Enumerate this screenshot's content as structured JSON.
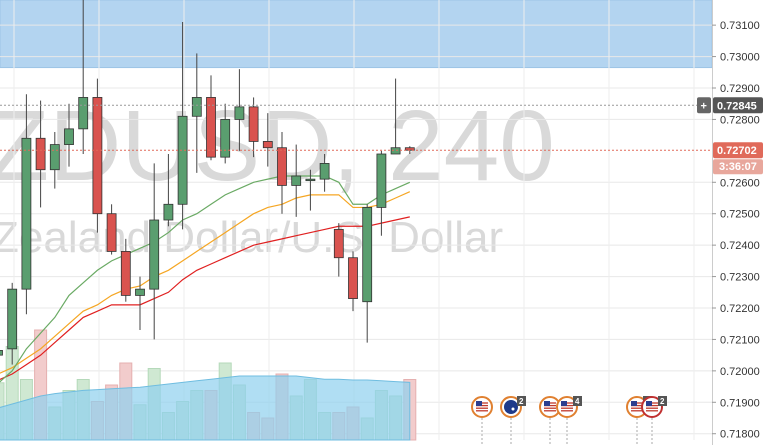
{
  "watermark": {
    "symbol": "ZDUSD, 240",
    "description": "Zealand Dollar/U.S. Dollar"
  },
  "price_tags": {
    "marked_price": "0.72845",
    "current_price": "0.72702",
    "countdown": "3:36:07",
    "plus_symbol": "+"
  },
  "colors": {
    "bull": "#5a9e6f",
    "bear": "#d9534f",
    "zone": "#b3d4f0",
    "ma_fast": "#6aaa64",
    "ma_mid": "#f5a623",
    "ma_slow": "#e02020",
    "volume_green": "#cfe8d2",
    "volume_red": "#f2cccc",
    "volume_area": "#8fd0ee",
    "current_price_line": "#e06a5a",
    "marked_price_line": "#999999"
  },
  "events": [
    {
      "flag": "us-flag-icon",
      "count": ""
    },
    {
      "flag": "au-flag-icon",
      "count": "2"
    },
    {
      "flag": "us-flag-icon",
      "count": ""
    },
    {
      "flag": "us-flag-icon",
      "count": "4"
    },
    {
      "flag": "us-flag-icon",
      "count": "4"
    },
    {
      "flag": "us-flag-icon",
      "count": "2"
    }
  ],
  "chart_data": {
    "type": "candlestick",
    "y_axis": {
      "ticks": [
        "0.73100",
        "0.73000",
        "0.72900",
        "0.72800",
        "0.72600",
        "0.72500",
        "0.72400",
        "0.72300",
        "0.72200",
        "0.72100",
        "0.72000",
        "0.71900",
        "0.71800"
      ],
      "ylim": [
        0.7178,
        0.7318
      ]
    },
    "shaded_zone": [
      0.72965,
      0.7318
    ],
    "candles": [
      {
        "o": 0.7205,
        "h": 0.7212,
        "l": 0.7202,
        "c": 0.72065
      },
      {
        "o": 0.7207,
        "h": 0.7228,
        "l": 0.7202,
        "c": 0.7226
      },
      {
        "o": 0.7226,
        "h": 0.7288,
        "l": 0.7218,
        "c": 0.7274
      },
      {
        "o": 0.7274,
        "h": 0.7286,
        "l": 0.7252,
        "c": 0.7264
      },
      {
        "o": 0.7264,
        "h": 0.7276,
        "l": 0.7258,
        "c": 0.7272
      },
      {
        "o": 0.7272,
        "h": 0.7285,
        "l": 0.7265,
        "c": 0.7277
      },
      {
        "o": 0.7277,
        "h": 0.7319,
        "l": 0.7269,
        "c": 0.7287
      },
      {
        "o": 0.7287,
        "h": 0.7293,
        "l": 0.7244,
        "c": 0.725
      },
      {
        "o": 0.725,
        "h": 0.7253,
        "l": 0.7237,
        "c": 0.7238
      },
      {
        "o": 0.7238,
        "h": 0.7242,
        "l": 0.7222,
        "c": 0.7224
      },
      {
        "o": 0.7224,
        "h": 0.723,
        "l": 0.7213,
        "c": 0.7226
      },
      {
        "o": 0.7226,
        "h": 0.7266,
        "l": 0.721,
        "c": 0.7248
      },
      {
        "o": 0.7248,
        "h": 0.7269,
        "l": 0.7246,
        "c": 0.7253
      },
      {
        "o": 0.7253,
        "h": 0.7311,
        "l": 0.7245,
        "c": 0.7281
      },
      {
        "o": 0.7281,
        "h": 0.7301,
        "l": 0.7263,
        "c": 0.7287
      },
      {
        "o": 0.7287,
        "h": 0.7294,
        "l": 0.7267,
        "c": 0.7268
      },
      {
        "o": 0.7268,
        "h": 0.7285,
        "l": 0.7266,
        "c": 0.728
      },
      {
        "o": 0.728,
        "h": 0.7296,
        "l": 0.727,
        "c": 0.7284
      },
      {
        "o": 0.7284,
        "h": 0.7287,
        "l": 0.7268,
        "c": 0.7273
      },
      {
        "o": 0.7273,
        "h": 0.7282,
        "l": 0.7265,
        "c": 0.7271
      },
      {
        "o": 0.7271,
        "h": 0.7276,
        "l": 0.725,
        "c": 0.7259
      },
      {
        "o": 0.7259,
        "h": 0.7272,
        "l": 0.7249,
        "c": 0.7262
      },
      {
        "o": 0.7261,
        "h": 0.7264,
        "l": 0.7251,
        "c": 0.7261
      },
      {
        "o": 0.7261,
        "h": 0.7269,
        "l": 0.7257,
        "c": 0.7266
      },
      {
        "o": 0.7245,
        "h": 0.7247,
        "l": 0.723,
        "c": 0.7236
      },
      {
        "o": 0.7236,
        "h": 0.7238,
        "l": 0.7219,
        "c": 0.7223
      },
      {
        "o": 0.7222,
        "h": 0.7253,
        "l": 0.7209,
        "c": 0.7252
      },
      {
        "o": 0.7252,
        "h": 0.727,
        "l": 0.7243,
        "c": 0.7269
      },
      {
        "o": 0.7269,
        "h": 0.7293,
        "l": 0.7269,
        "c": 0.7271
      },
      {
        "o": 0.7271,
        "h": 0.72715,
        "l": 0.7269,
        "c": 0.72702
      }
    ],
    "ma_fast": [
      0.7196,
      0.72,
      0.7207,
      0.7212,
      0.7217,
      0.7224,
      0.7228,
      0.7232,
      0.7235,
      0.7237,
      0.7239,
      0.7241,
      0.7244,
      0.7248,
      0.725,
      0.7253,
      0.7256,
      0.7258,
      0.726,
      0.7261,
      0.7262,
      0.7262,
      0.7262,
      0.7262,
      0.726,
      0.7253,
      0.7253,
      0.7256,
      0.7258,
      0.726
    ],
    "ma_mid": [
      0.7199,
      0.7201,
      0.7204,
      0.7207,
      0.7211,
      0.7215,
      0.7219,
      0.7221,
      0.7224,
      0.7226,
      0.7227,
      0.723,
      0.7232,
      0.7235,
      0.7238,
      0.7241,
      0.7244,
      0.7247,
      0.725,
      0.7252,
      0.7253,
      0.7255,
      0.7256,
      0.7256,
      0.7256,
      0.7252,
      0.7252,
      0.7253,
      0.7255,
      0.7257
    ],
    "ma_slow": [
      0.7197,
      0.7199,
      0.7202,
      0.7205,
      0.7209,
      0.7213,
      0.7217,
      0.7219,
      0.7221,
      0.7221,
      0.7221,
      0.7223,
      0.7225,
      0.7229,
      0.7232,
      0.7234,
      0.7236,
      0.7238,
      0.724,
      0.7241,
      0.7242,
      0.7243,
      0.7244,
      0.7245,
      0.7246,
      0.7246,
      0.7246,
      0.7247,
      0.7248,
      0.7249
    ],
    "volume_bars": [
      0.52,
      0.85,
      0.55,
      1.0,
      0.3,
      0.45,
      0.55,
      0.35,
      0.5,
      0.7,
      0.32,
      0.65,
      0.25,
      0.35,
      0.45,
      0.45,
      0.7,
      0.5,
      0.25,
      0.2,
      0.6,
      0.4,
      0.55,
      0.25,
      0.25,
      0.3,
      0.2,
      0.45,
      0.4,
      0.55
    ],
    "volume_trend": [
      0.4,
      0.45,
      0.5,
      0.55,
      0.58,
      0.6,
      0.62,
      0.63,
      0.64,
      0.65,
      0.66,
      0.68,
      0.7,
      0.72,
      0.74,
      0.76,
      0.78,
      0.8,
      0.8,
      0.8,
      0.8,
      0.8,
      0.78,
      0.76,
      0.76,
      0.75,
      0.75,
      0.74,
      0.73,
      0.72
    ]
  }
}
